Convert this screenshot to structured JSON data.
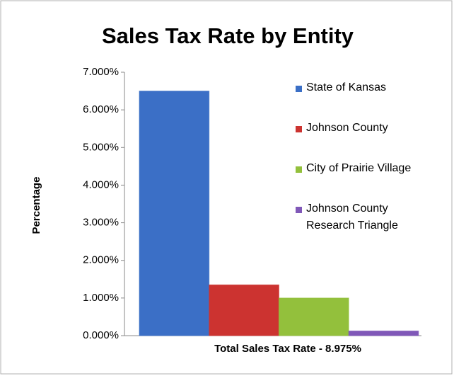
{
  "chart_data": {
    "type": "bar",
    "title": "Sales Tax Rate by Entity",
    "y_label": "Percentage",
    "categories": [
      "Total Sales Tax Rate - 8.975%"
    ],
    "series": [
      {
        "name": "State of Kansas",
        "color": "#3b6fc6",
        "values": [
          6.5
        ]
      },
      {
        "name": "Johnson County",
        "color": "#cc3330",
        "values": [
          1.35
        ]
      },
      {
        "name": "City of Prairie Village",
        "color": "#93c03c",
        "values": [
          1.0
        ]
      },
      {
        "name": "Johnson County Research Triangle",
        "color": "#8058b8",
        "values": [
          0.125
        ]
      }
    ],
    "ylim": [
      0,
      7
    ],
    "yticks": [
      {
        "value": 0,
        "label": "0.000%"
      },
      {
        "value": 1,
        "label": "1.000%"
      },
      {
        "value": 2,
        "label": "2.000%"
      },
      {
        "value": 3,
        "label": "3.000%"
      },
      {
        "value": 4,
        "label": "4.000%"
      },
      {
        "value": 5,
        "label": "5.000%"
      },
      {
        "value": 6,
        "label": "6.000%"
      },
      {
        "value": 7,
        "label": "7.000%"
      }
    ],
    "grid": false,
    "legend": "right"
  }
}
